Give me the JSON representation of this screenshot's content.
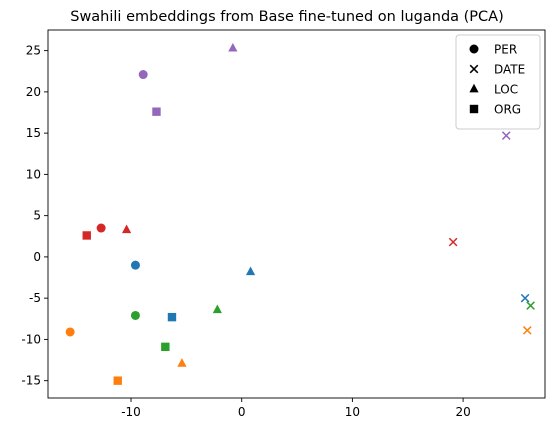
{
  "chart_data": {
    "type": "scatter",
    "title": "Swahili embeddings from Base fine-tuned on luganda (PCA)",
    "xlabel": "",
    "ylabel": "",
    "xlim": [
      -17.5,
      27.4
    ],
    "ylim": [
      -17.1,
      27.5
    ],
    "xticks": [
      -10,
      0,
      10,
      20
    ],
    "yticks": [
      -15,
      -10,
      -5,
      0,
      5,
      10,
      15,
      20,
      25
    ],
    "grid": false,
    "legend": {
      "placement": "top-right",
      "entries": [
        {
          "label": "PER",
          "marker": "circle"
        },
        {
          "label": "DATE",
          "marker": "x"
        },
        {
          "label": "LOC",
          "marker": "triangle"
        },
        {
          "label": "ORG",
          "marker": "square"
        }
      ]
    },
    "points": [
      {
        "x": -9.6,
        "y": -1.0,
        "marker": "circle",
        "color": "#1f77b4"
      },
      {
        "x": 0.8,
        "y": -1.8,
        "marker": "triangle",
        "color": "#1f77b4"
      },
      {
        "x": 25.6,
        "y": -5.0,
        "marker": "x",
        "color": "#1f77b4"
      },
      {
        "x": -6.3,
        "y": -7.3,
        "marker": "square",
        "color": "#1f77b4"
      },
      {
        "x": -15.5,
        "y": -9.1,
        "marker": "circle",
        "color": "#ff7f0e"
      },
      {
        "x": 25.8,
        "y": -8.9,
        "marker": "x",
        "color": "#ff7f0e"
      },
      {
        "x": -5.4,
        "y": -12.9,
        "marker": "triangle",
        "color": "#ff7f0e"
      },
      {
        "x": -11.2,
        "y": -15.0,
        "marker": "square",
        "color": "#ff7f0e"
      },
      {
        "x": -9.6,
        "y": -7.1,
        "marker": "circle",
        "color": "#2ca02c"
      },
      {
        "x": -2.2,
        "y": -6.4,
        "marker": "triangle",
        "color": "#2ca02c"
      },
      {
        "x": 26.1,
        "y": -5.9,
        "marker": "x",
        "color": "#2ca02c"
      },
      {
        "x": -6.9,
        "y": -10.9,
        "marker": "square",
        "color": "#2ca02c"
      },
      {
        "x": -12.7,
        "y": 3.5,
        "marker": "circle",
        "color": "#d62728"
      },
      {
        "x": -10.4,
        "y": 3.3,
        "marker": "triangle",
        "color": "#d62728"
      },
      {
        "x": -14.0,
        "y": 2.6,
        "marker": "square",
        "color": "#d62728"
      },
      {
        "x": 19.1,
        "y": 1.8,
        "marker": "x",
        "color": "#d62728"
      },
      {
        "x": -8.9,
        "y": 22.1,
        "marker": "circle",
        "color": "#9467bd"
      },
      {
        "x": -0.8,
        "y": 25.3,
        "marker": "triangle",
        "color": "#9467bd"
      },
      {
        "x": -7.7,
        "y": 17.6,
        "marker": "square",
        "color": "#9467bd"
      },
      {
        "x": 23.9,
        "y": 14.7,
        "marker": "x",
        "color": "#9467bd"
      }
    ]
  }
}
